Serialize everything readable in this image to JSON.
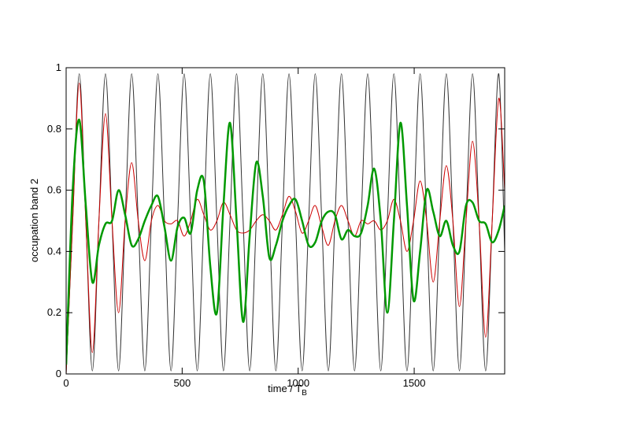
{
  "chart_data": {
    "type": "line",
    "xlabel": "time / T",
    "xlabel_sub": "B",
    "ylabel": "occupation band 2",
    "xlim": [
      0,
      1890
    ],
    "ylim": [
      0,
      1
    ],
    "xticks": [
      0,
      500,
      1000,
      1500
    ],
    "yticks": [
      0,
      0.2,
      0.4,
      0.6,
      0.8,
      1
    ],
    "x": [
      0,
      28.25,
      56.5,
      84.75,
      113,
      141.25,
      169.5,
      197.75,
      226,
      254.25,
      282.5,
      310.75,
      339,
      367.25,
      395.5,
      423.75,
      452,
      480.25,
      508.5,
      536.75,
      565,
      593.25,
      621.5,
      649.75,
      678,
      706.25,
      734.5,
      762.75,
      791,
      819.25,
      847.5,
      875.75,
      904,
      932.25,
      960.5,
      988.75,
      1017,
      1045.25,
      1073.5,
      1101.75,
      1130,
      1158.25,
      1186.5,
      1214.75,
      1243,
      1271.25,
      1299.5,
      1327.75,
      1356,
      1384.25,
      1412.5,
      1440.75,
      1469,
      1497.25,
      1525.5,
      1553.75,
      1582,
      1610.25,
      1638.5,
      1666.75,
      1695,
      1723.25,
      1751.5,
      1779.75,
      1808,
      1836.25,
      1864.5,
      1890
    ],
    "series": [
      {
        "color": "#333333",
        "width": 1,
        "values": [
          0,
          0.5,
          0.98,
          0.5,
          0.01,
          0.5,
          0.98,
          0.5,
          0.01,
          0.5,
          0.98,
          0.5,
          0.01,
          0.5,
          0.98,
          0.5,
          0.01,
          0.5,
          0.98,
          0.5,
          0.01,
          0.5,
          0.98,
          0.5,
          0.01,
          0.5,
          0.98,
          0.5,
          0.01,
          0.5,
          0.98,
          0.5,
          0.01,
          0.5,
          0.98,
          0.5,
          0.01,
          0.5,
          0.98,
          0.5,
          0.01,
          0.5,
          0.98,
          0.5,
          0.01,
          0.5,
          0.98,
          0.5,
          0.01,
          0.5,
          0.98,
          0.5,
          0.01,
          0.5,
          0.98,
          0.5,
          0.01,
          0.5,
          0.98,
          0.5,
          0.01,
          0.5,
          0.98,
          0.5,
          0.01,
          0.5,
          0.98,
          0.4
        ]
      },
      {
        "color": "#cc0000",
        "width": 1,
        "values": [
          0,
          0.5,
          0.95,
          0.5,
          0.07,
          0.5,
          0.85,
          0.5,
          0.2,
          0.5,
          0.69,
          0.5,
          0.37,
          0.5,
          0.55,
          0.5,
          0.49,
          0.5,
          0.45,
          0.5,
          0.57,
          0.52,
          0.47,
          0.5,
          0.56,
          0.52,
          0.47,
          0.46,
          0.47,
          0.5,
          0.52,
          0.5,
          0.47,
          0.52,
          0.58,
          0.53,
          0.46,
          0.5,
          0.55,
          0.48,
          0.42,
          0.5,
          0.55,
          0.5,
          0.45,
          0.5,
          0.49,
          0.5,
          0.47,
          0.5,
          0.57,
          0.5,
          0.4,
          0.5,
          0.63,
          0.5,
          0.3,
          0.5,
          0.68,
          0.5,
          0.22,
          0.5,
          0.76,
          0.5,
          0.12,
          0.5,
          0.9,
          0.6
        ]
      },
      {
        "color": "#009900",
        "width": 2.5,
        "values": [
          0.03,
          0.6,
          0.83,
          0.55,
          0.3,
          0.42,
          0.49,
          0.5,
          0.6,
          0.52,
          0.42,
          0.44,
          0.5,
          0.55,
          0.58,
          0.48,
          0.37,
          0.48,
          0.51,
          0.46,
          0.6,
          0.63,
          0.35,
          0.2,
          0.55,
          0.82,
          0.5,
          0.17,
          0.45,
          0.69,
          0.58,
          0.38,
          0.42,
          0.5,
          0.55,
          0.57,
          0.5,
          0.42,
          0.43,
          0.5,
          0.53,
          0.52,
          0.44,
          0.47,
          0.45,
          0.46,
          0.55,
          0.67,
          0.5,
          0.2,
          0.5,
          0.82,
          0.55,
          0.24,
          0.4,
          0.6,
          0.53,
          0.45,
          0.5,
          0.42,
          0.4,
          0.55,
          0.56,
          0.5,
          0.49,
          0.43,
          0.47,
          0.55
        ]
      }
    ]
  }
}
